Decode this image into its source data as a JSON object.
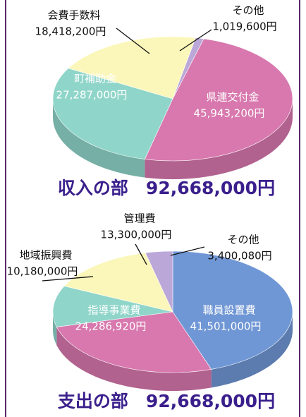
{
  "chart_data": [
    {
      "type": "pie",
      "title": "収入の部　92,668,000円",
      "categories": [
        "県連交付金",
        "町補助金",
        "会費手数料",
        "その他"
      ],
      "values": [
        45943200,
        27287000,
        18418200,
        1019600
      ],
      "value_labels": [
        "45,943,200円",
        "27,287,000円",
        "18,418,200円",
        "1,019,600円"
      ],
      "colors": [
        "#d878ae",
        "#8fd5c9",
        "#fbf7bb",
        "#bba8d8"
      ]
    },
    {
      "type": "pie",
      "title": "支出の部　92,668,000円",
      "categories": [
        "職員設置費",
        "指導事業費",
        "地域振興費",
        "管理費",
        "その他"
      ],
      "values": [
        41501000,
        24286920,
        10180000,
        13300000,
        3400080
      ],
      "value_labels": [
        "41,501,000円",
        "24,286,920円",
        "10,180,000円",
        "13,300,000円",
        "3,400,080円"
      ],
      "colors": [
        "#7097d5",
        "#d878ae",
        "#8fd5c9",
        "#fbf7bb",
        "#bba8d8"
      ]
    }
  ]
}
